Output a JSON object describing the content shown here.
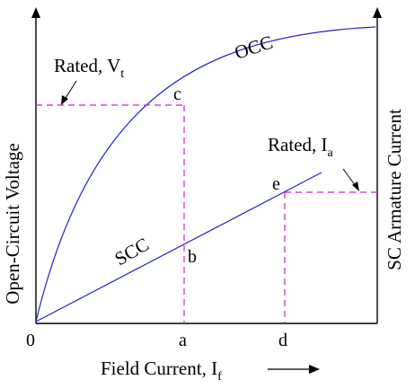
{
  "colors": {
    "curve": "#2222cc",
    "guide": "#cc22cc",
    "axis": "#000000"
  },
  "labels": {
    "origin": "0",
    "tick_a": "a",
    "tick_d": "d",
    "x_axis_main": "Field Current, I",
    "x_axis_sub": "f",
    "y_left": "Open-Circuit Voltage",
    "y_right": "SC Armature Current",
    "occ": "OCC",
    "scc": "SCC",
    "point_c": "c",
    "point_b": "b",
    "point_e": "e",
    "rated_v_main": "Rated, V",
    "rated_v_sub": "t",
    "rated_i_main": "Rated, I",
    "rated_i_sub": "a"
  }
}
